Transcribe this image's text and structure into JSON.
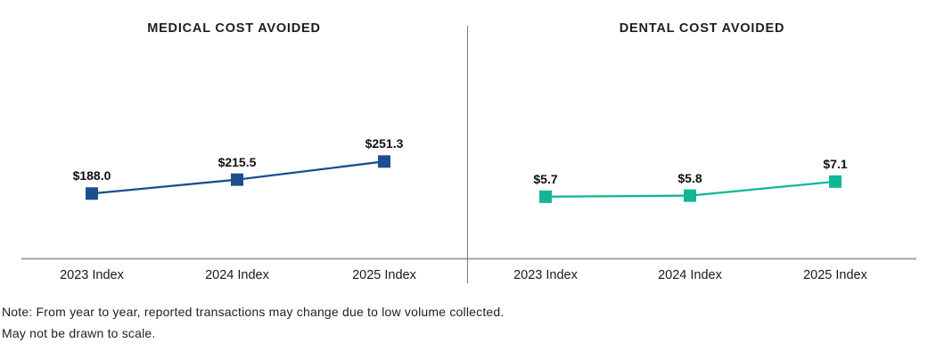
{
  "note": {
    "line1": "Note: From year to year, reported transactions may change due to low volume collected.",
    "line2": "May not be drawn to scale."
  },
  "divider_color": "#7d7d7d",
  "axis_color": "#a3a3a3",
  "chart_data": [
    {
      "type": "line",
      "title": "MEDICAL COST AVOIDED",
      "categories": [
        "2023 Index",
        "2024 Index",
        "2025 Index"
      ],
      "series": [
        {
          "name": "Medical cost avoided",
          "values": [
            188.0,
            215.5,
            251.3
          ]
        }
      ],
      "data_labels": [
        "$188.0",
        "$215.5",
        "$251.3"
      ],
      "color": "#1b4e8f",
      "marker": "square",
      "ylim": [
        60,
        500
      ],
      "grid": false,
      "legend": "none"
    },
    {
      "type": "line",
      "title": "DENTAL COST AVOIDED",
      "categories": [
        "2023 Index",
        "2024 Index",
        "2025 Index"
      ],
      "series": [
        {
          "name": "Dental cost avoided",
          "values": [
            5.7,
            5.8,
            7.1
          ]
        }
      ],
      "data_labels": [
        "$5.7",
        "$5.8",
        "$7.1"
      ],
      "color": "#10b698",
      "marker": "square",
      "ylim": [
        0,
        20.6
      ],
      "grid": false,
      "legend": "none"
    }
  ]
}
